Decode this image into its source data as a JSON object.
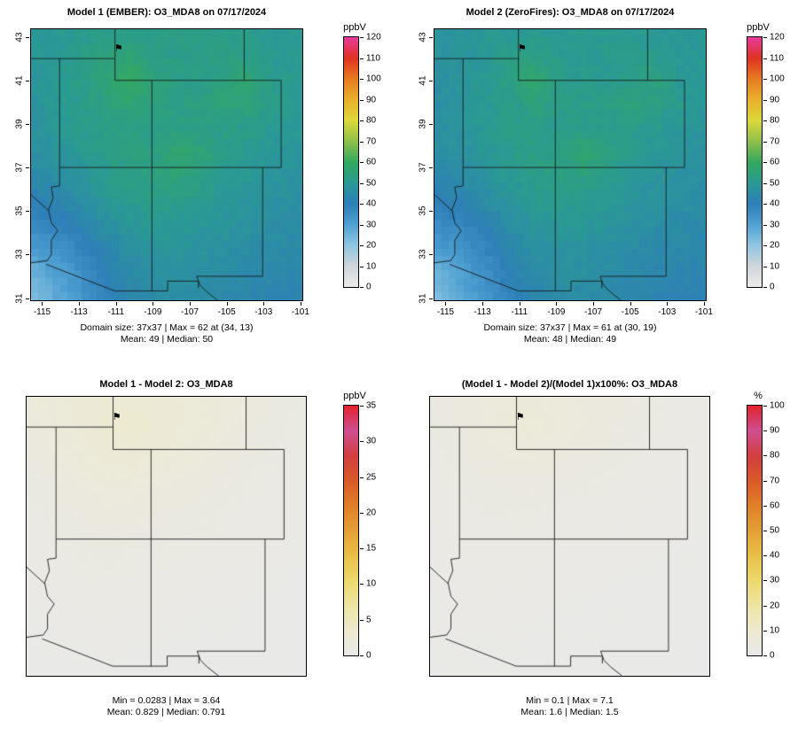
{
  "marker": {
    "glyph": "⚑",
    "lon": -110.9,
    "lat": 42.2
  },
  "geo": {
    "lon_min": -115.6,
    "lon_max": -100.9,
    "lat_min": 30.9,
    "lat_max": 43.35,
    "nx": 37,
    "ny": 37
  },
  "palettes": {
    "o3": [
      [
        0,
        "#ebebeb"
      ],
      [
        0.083,
        "#cfd6da"
      ],
      [
        0.167,
        "#8ec6e2"
      ],
      [
        0.25,
        "#4fa0d2"
      ],
      [
        0.333,
        "#2e7fb8"
      ],
      [
        0.417,
        "#2a9a93"
      ],
      [
        0.5,
        "#34a95f"
      ],
      [
        0.583,
        "#8ec04a"
      ],
      [
        0.667,
        "#dcd93a"
      ],
      [
        0.75,
        "#e9b02c"
      ],
      [
        0.833,
        "#e87c20"
      ],
      [
        0.917,
        "#e13322"
      ],
      [
        1,
        "#e83a9c"
      ]
    ],
    "warm": [
      [
        0,
        "#e9e9e9"
      ],
      [
        0.1,
        "#edead0"
      ],
      [
        0.2,
        "#eee5a4"
      ],
      [
        0.3,
        "#ecd96b"
      ],
      [
        0.4,
        "#e9c047"
      ],
      [
        0.5,
        "#e5a035"
      ],
      [
        0.6,
        "#e07f28"
      ],
      [
        0.7,
        "#da5a28"
      ],
      [
        0.8,
        "#d23f40"
      ],
      [
        0.9,
        "#cf4f93"
      ],
      [
        1,
        "#e2242e"
      ]
    ]
  },
  "borders": [
    [
      [
        -115.6,
        42
      ],
      [
        -111.05,
        42
      ]
    ],
    [
      [
        -111.05,
        43.35
      ],
      [
        -111.05,
        41
      ]
    ],
    [
      [
        -111.05,
        41
      ],
      [
        -102.05,
        41
      ]
    ],
    [
      [
        -104.05,
        43.35
      ],
      [
        -104.05,
        41
      ]
    ],
    [
      [
        -102.05,
        41
      ],
      [
        -102.05,
        37
      ]
    ],
    [
      [
        -114.05,
        42
      ],
      [
        -114.05,
        37
      ]
    ],
    [
      [
        -114.05,
        37
      ],
      [
        -102.05,
        37
      ]
    ],
    [
      [
        -109.05,
        41
      ],
      [
        -109.05,
        31.33
      ]
    ],
    [
      [
        -103.05,
        37
      ],
      [
        -103.05,
        32.0
      ]
    ],
    [
      [
        -103.05,
        32.0
      ],
      [
        -106.62,
        32.0
      ]
    ],
    [
      [
        -106.62,
        32.0
      ],
      [
        -106.45,
        31.6
      ],
      [
        -106.1,
        31.3
      ],
      [
        -105.5,
        30.9
      ]
    ],
    [
      [
        -114.05,
        37
      ],
      [
        -114.05,
        36.15
      ],
      [
        -114.5,
        36.1
      ],
      [
        -114.4,
        35.6
      ],
      [
        -114.65,
        35.05
      ],
      [
        -114.5,
        34.45
      ],
      [
        -114.15,
        34.1
      ],
      [
        -114.5,
        33.65
      ],
      [
        -114.5,
        33.0
      ],
      [
        -114.72,
        32.72
      ]
    ],
    [
      [
        -114.63,
        35.0
      ],
      [
        -115.6,
        35.75
      ]
    ],
    [
      [
        -114.72,
        32.72
      ],
      [
        -115.6,
        32.62
      ]
    ],
    [
      [
        -114.78,
        32.55
      ],
      [
        -111.07,
        31.33
      ],
      [
        -108.2,
        31.33
      ],
      [
        -108.2,
        31.78
      ],
      [
        -106.53,
        31.78
      ],
      [
        -106.53,
        31.45
      ]
    ]
  ],
  "chart_data": [
    {
      "type": "heatmap",
      "title": "Model 1 (EMBER): O3_MDA8 on 07/17/2024",
      "palette": "o3",
      "vmin": 0,
      "vmax": 120,
      "noise": 2.5,
      "colorbar": {
        "label": "ppbV",
        "ticks": [
          0,
          10,
          20,
          30,
          40,
          50,
          60,
          70,
          80,
          90,
          100,
          110,
          120
        ]
      },
      "axes": {
        "x_ticks": [
          -115,
          -113,
          -111,
          -109,
          -107,
          -105,
          -103,
          -101
        ],
        "y_ticks": [
          31,
          33,
          35,
          37,
          39,
          41,
          43
        ]
      },
      "stats": [
        "Domain size: 37x37 | Max = 62 at (34, 13)",
        "Mean: 49 | Median: 50"
      ],
      "grid": [
        [
          49,
          50,
          51,
          52,
          52,
          52,
          53,
          53,
          52,
          51,
          50,
          50
        ],
        [
          49,
          50,
          52,
          54,
          56,
          53,
          52,
          53,
          53,
          52,
          50,
          50
        ],
        [
          48,
          50,
          52,
          55,
          60,
          55,
          53,
          52,
          54,
          56,
          51,
          50
        ],
        [
          48,
          50,
          52,
          54,
          56,
          53,
          53,
          54,
          56,
          54,
          52,
          50
        ],
        [
          47,
          49,
          51,
          53,
          53,
          52,
          53,
          52,
          52,
          52,
          50,
          49
        ],
        [
          46,
          48,
          50,
          52,
          54,
          53,
          58,
          55,
          52,
          50,
          49,
          48
        ],
        [
          44,
          46,
          48,
          51,
          53,
          54,
          55,
          53,
          50,
          49,
          48,
          47
        ],
        [
          41,
          43,
          46,
          49,
          51,
          52,
          52,
          51,
          49,
          48,
          47,
          46
        ],
        [
          37,
          39,
          42,
          46,
          49,
          50,
          50,
          49,
          48,
          47,
          46,
          45
        ],
        [
          32,
          34,
          38,
          43,
          46,
          48,
          48,
          47,
          46,
          45,
          45,
          44
        ],
        [
          26,
          30,
          35,
          41,
          44,
          46,
          47,
          46,
          45,
          44,
          44,
          43
        ],
        [
          22,
          28,
          33,
          39,
          43,
          45,
          46,
          45,
          44,
          43,
          43,
          42
        ]
      ]
    },
    {
      "type": "heatmap",
      "title": "Model 2 (ZeroFires): O3_MDA8 on 07/17/2024",
      "palette": "o3",
      "vmin": 0,
      "vmax": 120,
      "noise": 2.5,
      "colorbar": {
        "label": "ppbV",
        "ticks": [
          0,
          10,
          20,
          30,
          40,
          50,
          60,
          70,
          80,
          90,
          100,
          110,
          120
        ]
      },
      "axes": {
        "x_ticks": [
          -115,
          -113,
          -111,
          -109,
          -107,
          -105,
          -103,
          -101
        ],
        "y_ticks": [
          31,
          33,
          35,
          37,
          39,
          41,
          43
        ]
      },
      "stats": [
        "Domain size: 37x37 | Max = 61 at (30, 19)",
        "Mean: 48 | Median: 49"
      ],
      "grid": [
        [
          47,
          48,
          49,
          50,
          50,
          50,
          51,
          51,
          50,
          50,
          49,
          49
        ],
        [
          47,
          48,
          50,
          52,
          53,
          51,
          50,
          51,
          51,
          51,
          49,
          49
        ],
        [
          46,
          48,
          50,
          53,
          57,
          53,
          51,
          50,
          52,
          54,
          50,
          49
        ],
        [
          46,
          48,
          50,
          52,
          54,
          52,
          52,
          53,
          55,
          53,
          51,
          49
        ],
        [
          46,
          48,
          50,
          52,
          52,
          51,
          52,
          51,
          51,
          51,
          49,
          48
        ],
        [
          45,
          47,
          49,
          51,
          53,
          52,
          57,
          54,
          51,
          49,
          48,
          47
        ],
        [
          43,
          45,
          47,
          50,
          52,
          53,
          54,
          52,
          49,
          48,
          47,
          46
        ],
        [
          40,
          42,
          45,
          48,
          50,
          51,
          51,
          50,
          48,
          47,
          46,
          45
        ],
        [
          36,
          38,
          41,
          45,
          48,
          49,
          49,
          48,
          47,
          46,
          45,
          44
        ],
        [
          32,
          34,
          38,
          43,
          46,
          47,
          47,
          46,
          45,
          44,
          44,
          43
        ],
        [
          26,
          30,
          35,
          41,
          44,
          46,
          46,
          45,
          44,
          43,
          43,
          42
        ],
        [
          22,
          28,
          33,
          39,
          43,
          45,
          45,
          44,
          43,
          42,
          42,
          41
        ]
      ]
    },
    {
      "type": "heatmap",
      "title": "Model 1 - Model 2: O3_MDA8",
      "palette": "warm",
      "vmin": 0,
      "vmax": 35,
      "noise": 0.15,
      "colorbar": {
        "label": "ppbV",
        "ticks": [
          0,
          5,
          10,
          15,
          20,
          25,
          30,
          35
        ]
      },
      "axes": null,
      "stats": [
        "Min = 0.0283 | Max = 3.64",
        "Mean: 0.829 | Median: 0.791"
      ],
      "grid": [
        [
          1.8,
          2.2,
          2.6,
          2.9,
          3.0,
          2.8,
          2.5,
          2.2,
          2.0,
          1.6,
          1.2,
          1.0
        ],
        [
          1.6,
          2.0,
          2.5,
          3.1,
          3.4,
          3.0,
          2.6,
          2.2,
          1.9,
          1.5,
          1.1,
          0.9
        ],
        [
          1.4,
          1.8,
          2.2,
          2.7,
          3.0,
          2.6,
          2.2,
          1.9,
          1.6,
          1.3,
          1.0,
          0.8
        ],
        [
          1.2,
          1.5,
          1.9,
          2.2,
          2.3,
          2.0,
          1.8,
          1.6,
          1.4,
          1.1,
          0.9,
          0.7
        ],
        [
          1.0,
          1.3,
          1.6,
          1.8,
          1.8,
          1.6,
          1.5,
          1.3,
          1.1,
          0.9,
          0.8,
          0.6
        ],
        [
          0.9,
          1.1,
          1.3,
          1.5,
          1.4,
          1.3,
          1.2,
          1.1,
          0.9,
          0.8,
          0.7,
          0.5
        ],
        [
          0.7,
          0.9,
          1.1,
          1.2,
          1.1,
          1.0,
          1.0,
          0.9,
          0.8,
          0.7,
          0.6,
          0.4
        ],
        [
          0.6,
          0.8,
          0.9,
          1.0,
          0.9,
          0.9,
          0.8,
          0.7,
          0.6,
          0.5,
          0.4,
          0.3
        ],
        [
          0.5,
          0.6,
          0.7,
          0.8,
          0.7,
          0.7,
          0.6,
          0.5,
          0.5,
          0.4,
          0.3,
          0.3
        ],
        [
          0.4,
          0.5,
          0.6,
          0.6,
          0.6,
          0.5,
          0.5,
          0.4,
          0.4,
          0.3,
          0.3,
          0.2
        ],
        [
          0.3,
          0.4,
          0.4,
          0.5,
          0.4,
          0.4,
          0.4,
          0.3,
          0.3,
          0.2,
          0.2,
          0.1
        ],
        [
          0.2,
          0.3,
          0.3,
          0.4,
          0.3,
          0.3,
          0.3,
          0.2,
          0.2,
          0.1,
          0.1,
          0.1
        ]
      ]
    },
    {
      "type": "heatmap",
      "title": "(Model 1 - Model 2)/(Model 1)x100%: O3_MDA8",
      "palette": "warm",
      "vmin": 0,
      "vmax": 100,
      "noise": 0.4,
      "colorbar": {
        "label": "%",
        "ticks": [
          0,
          10,
          20,
          30,
          40,
          50,
          60,
          70,
          80,
          90,
          100
        ]
      },
      "axes": null,
      "stats": [
        "Min = 0.1 | Max = 7.1",
        "Mean: 1.6 | Median: 1.5"
      ],
      "grid": [
        [
          3.8,
          4.5,
          5.2,
          5.7,
          6.0,
          5.6,
          5.0,
          4.3,
          3.9,
          3.2,
          2.4,
          2.0
        ],
        [
          3.4,
          4.1,
          5.0,
          6.0,
          6.6,
          5.9,
          5.1,
          4.3,
          3.7,
          2.9,
          2.2,
          1.8
        ],
        [
          2.9,
          3.7,
          4.4,
          5.2,
          5.5,
          4.9,
          4.2,
          3.7,
          3.0,
          2.4,
          2.0,
          1.6
        ],
        [
          2.5,
          3.0,
          3.7,
          4.2,
          4.3,
          3.8,
          3.4,
          3.0,
          2.5,
          2.0,
          1.7,
          1.4
        ],
        [
          2.1,
          2.7,
          3.1,
          3.4,
          3.4,
          3.1,
          2.8,
          2.5,
          2.1,
          1.7,
          1.6,
          1.2
        ],
        [
          2.0,
          2.3,
          2.6,
          2.9,
          2.6,
          2.5,
          2.1,
          2.0,
          1.8,
          1.6,
          1.4,
          1.0
        ],
        [
          1.6,
          2.0,
          2.3,
          2.4,
          2.1,
          1.9,
          1.8,
          1.7,
          1.6,
          1.4,
          1.2,
          0.9
        ],
        [
          1.5,
          1.9,
          2.0,
          2.0,
          1.8,
          1.7,
          1.5,
          1.4,
          1.2,
          1.0,
          0.9,
          0.7
        ],
        [
          1.4,
          1.5,
          1.7,
          1.7,
          1.4,
          1.4,
          1.2,
          1.0,
          1.0,
          0.9,
          0.7,
          0.7
        ],
        [
          1.3,
          1.5,
          1.6,
          1.4,
          1.3,
          1.0,
          1.0,
          0.9,
          0.9,
          0.7,
          0.7,
          0.5
        ],
        [
          1.2,
          1.3,
          1.1,
          1.2,
          0.9,
          0.9,
          0.9,
          0.7,
          0.7,
          0.5,
          0.5,
          0.2
        ],
        [
          0.9,
          1.1,
          0.9,
          1.0,
          0.7,
          0.7,
          0.7,
          0.4,
          0.5,
          0.2,
          0.2,
          0.1
        ]
      ]
    }
  ]
}
